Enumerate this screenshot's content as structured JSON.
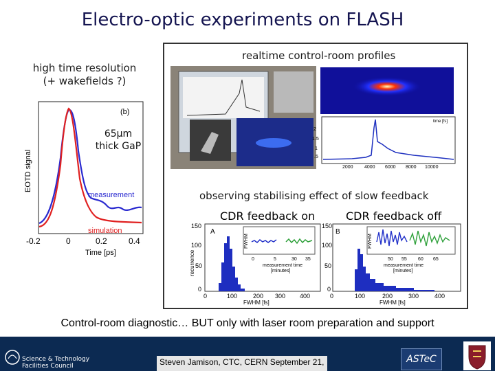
{
  "title": "Electro-optic experiments on FLASH",
  "note_left": {
    "line1": "high time resolution",
    "line2": "(+ wakefields ?)"
  },
  "panel_labels": {
    "realtime": "realtime control-room profiles",
    "observing": "observing stabilising effect of slow feedback",
    "feedback_on": "CDR feedback on",
    "feedback_off": "CDR feedback off"
  },
  "eotd_plot": {
    "panel_tag": "(b)",
    "crystal_line1": "65µm",
    "crystal_line2": "thick GaP",
    "ylabel": "EOTD signal",
    "xlabel": "Time [ps]",
    "xticks": [
      "-0.2",
      "0",
      "0.2",
      "0.4"
    ],
    "series_measurement": "measurement",
    "series_simulation": "simulation",
    "colors": {
      "measurement": "#2a2ad0",
      "simulation": "#e02020"
    }
  },
  "profile_plot": {
    "xlabel": "time [fs]",
    "xticks": [
      "2000",
      "4000",
      "6000",
      "8000",
      "10000"
    ],
    "yticks": [
      "2",
      "1.5",
      "1",
      ".5"
    ]
  },
  "hist_a": {
    "letter": "A",
    "ylabel": "recurrence",
    "xlabel": "FWHM [fs]",
    "xticks": [
      "0",
      "100",
      "200",
      "300",
      "400"
    ],
    "yticks": [
      "150",
      "100",
      "50",
      "0"
    ],
    "inset": {
      "ylabel": "FWHM",
      "yticks": [
        "150",
        "100",
        "50"
      ],
      "xticks": [
        "0",
        "5",
        "30",
        "35"
      ],
      "xlabel1": "measurement time",
      "xlabel2": "[minutes]"
    }
  },
  "hist_b": {
    "letter": "B",
    "xlabel": "FWHM [fs]",
    "xticks": [
      "0",
      "100",
      "200",
      "300",
      "400"
    ],
    "yticks": [
      "150",
      "100",
      "50",
      "0"
    ],
    "inset": {
      "ylabel": "FWHM",
      "yticks": [
        "150",
        "100",
        "50"
      ],
      "xticks": [
        "50",
        "55",
        "60",
        "65"
      ],
      "xlabel1": "measurement time",
      "xlabel2": "[minutes]"
    }
  },
  "bottom_text": "Control-room diagnostic… BUT only with laser room preparation and support",
  "footer": {
    "stfc_line1": "Science & Technology",
    "stfc_line2": "Facilities Council",
    "presenter": "Steven Jamison, CTC, CERN September 21,",
    "astec": "ASTeC"
  }
}
